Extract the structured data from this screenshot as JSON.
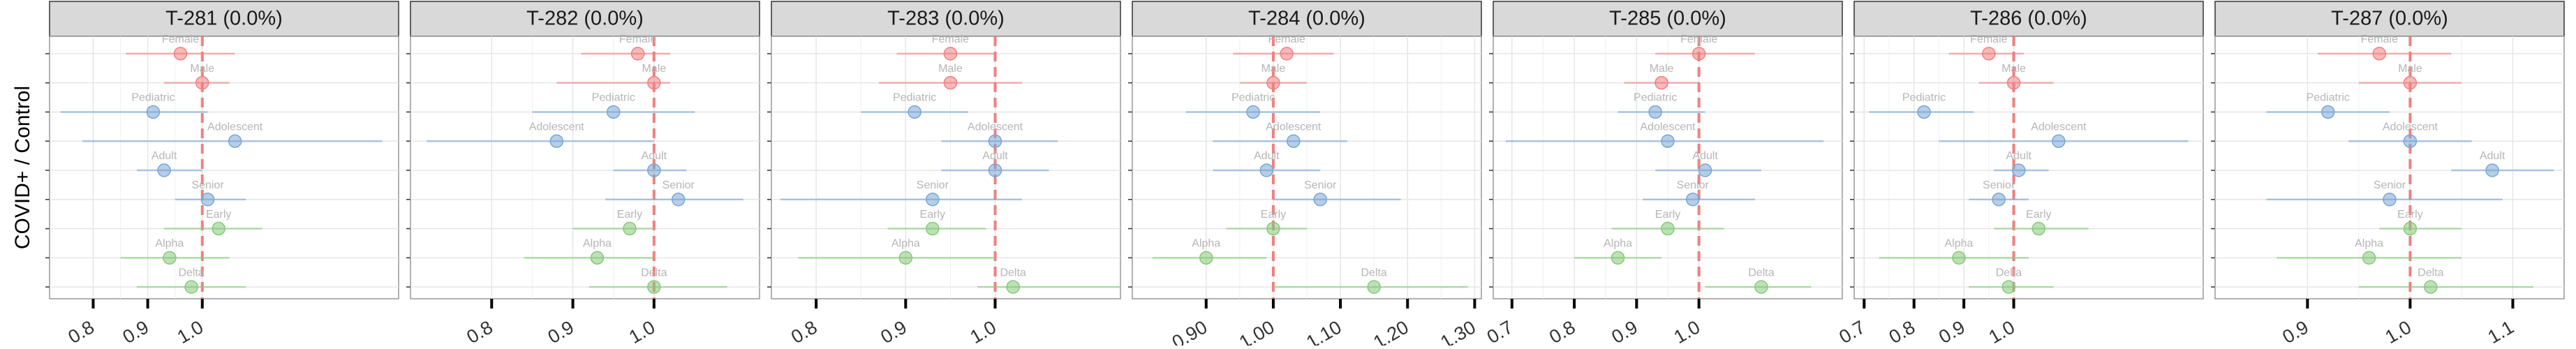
{
  "chart_data": [
    {
      "type": "forest",
      "title": "T-281 (0.0%)",
      "ylabel": "COVID+ / Control",
      "reference": 1,
      "categories": [
        "Female",
        "Male",
        "Pediatric",
        "Adolescent",
        "Adult",
        "Senior",
        "Early",
        "Alpha",
        "Delta"
      ],
      "colors": [
        "#f08080",
        "#f08080",
        "#7aa6d6",
        "#7aa6d6",
        "#7aa6d6",
        "#7aa6d6",
        "#86c97a",
        "#86c97a",
        "#86c97a"
      ],
      "values": [
        0.96,
        1.0,
        0.91,
        1.06,
        0.93,
        1.01,
        1.03,
        0.94,
        0.98
      ],
      "lower": [
        0.86,
        0.93,
        0.74,
        0.78,
        0.88,
        0.95,
        0.93,
        0.85,
        0.88
      ],
      "upper": [
        1.06,
        1.05,
        1.01,
        1.33,
        1.0,
        1.08,
        1.11,
        1.05,
        1.08
      ],
      "xlim": [
        0.72,
        1.36
      ],
      "xticks": [
        0.8,
        0.9,
        {
          "value": 1,
          "label": "1.0"
        }
      ]
    },
    {
      "type": "forest",
      "title": "T-282 (0.0%)",
      "reference": 1,
      "categories": [
        "Female",
        "Male",
        "Pediatric",
        "Adolescent",
        "Adult",
        "Senior",
        "Early",
        "Alpha",
        "Delta"
      ],
      "colors": [
        "#f08080",
        "#f08080",
        "#7aa6d6",
        "#7aa6d6",
        "#7aa6d6",
        "#7aa6d6",
        "#86c97a",
        "#86c97a",
        "#86c97a"
      ],
      "values": [
        0.98,
        1.0,
        0.95,
        0.88,
        1.0,
        1.03,
        0.97,
        0.93,
        1.0
      ],
      "lower": [
        0.91,
        0.88,
        0.85,
        0.72,
        0.95,
        0.94,
        0.9,
        0.84,
        0.92
      ],
      "upper": [
        1.02,
        1.02,
        1.05,
        1.0,
        1.04,
        1.11,
        1.0,
        1.0,
        1.09
      ],
      "xlim": [
        0.7,
        1.13
      ],
      "xticks": [
        0.8,
        0.9,
        {
          "value": 1,
          "label": "1.0"
        }
      ]
    },
    {
      "type": "forest",
      "title": "T-283 (0.0%)",
      "reference": 1,
      "categories": [
        "Female",
        "Male",
        "Pediatric",
        "Adolescent",
        "Adult",
        "Senior",
        "Early",
        "Alpha",
        "Delta"
      ],
      "colors": [
        "#f08080",
        "#f08080",
        "#7aa6d6",
        "#7aa6d6",
        "#7aa6d6",
        "#7aa6d6",
        "#86c97a",
        "#86c97a",
        "#86c97a"
      ],
      "values": [
        0.95,
        0.95,
        0.91,
        1.0,
        1.0,
        0.93,
        0.93,
        0.9,
        1.02
      ],
      "lower": [
        0.89,
        0.87,
        0.85,
        0.94,
        0.94,
        0.76,
        0.88,
        0.78,
        0.98
      ],
      "upper": [
        1.0,
        1.03,
        0.97,
        1.07,
        1.06,
        1.03,
        0.99,
        1.0,
        1.14
      ],
      "xlim": [
        0.75,
        1.14
      ],
      "xticks": [
        0.8,
        0.9,
        {
          "value": 1,
          "label": "1.0"
        }
      ]
    },
    {
      "type": "forest",
      "title": "T-284 (0.0%)",
      "reference": 1,
      "categories": [
        "Female",
        "Male",
        "Pediatric",
        "Adolescent",
        "Adult",
        "Senior",
        "Early",
        "Alpha",
        "Delta"
      ],
      "colors": [
        "#f08080",
        "#f08080",
        "#7aa6d6",
        "#7aa6d6",
        "#7aa6d6",
        "#7aa6d6",
        "#86c97a",
        "#86c97a",
        "#86c97a"
      ],
      "values": [
        1.02,
        1.0,
        0.97,
        1.03,
        0.99,
        1.07,
        1.0,
        0.9,
        1.15
      ],
      "lower": [
        0.94,
        0.95,
        0.87,
        0.91,
        0.91,
        1.0,
        0.93,
        0.82,
        1.0
      ],
      "upper": [
        1.09,
        1.05,
        1.07,
        1.11,
        1.07,
        1.19,
        1.05,
        0.99,
        1.29
      ],
      "xlim": [
        0.79,
        1.31
      ],
      "xticks": [
        {
          "value": 0.9,
          "label": "0.90"
        },
        {
          "value": 1,
          "label": "1.00"
        },
        {
          "value": 1.1,
          "label": "1.10"
        },
        {
          "value": 1.2,
          "label": "1.20"
        },
        {
          "value": 1.3,
          "label": "1.30"
        }
      ]
    },
    {
      "type": "forest",
      "title": "T-285 (0.0%)",
      "reference": 1,
      "categories": [
        "Female",
        "Male",
        "Pediatric",
        "Adolescent",
        "Adult",
        "Senior",
        "Early",
        "Alpha",
        "Delta"
      ],
      "colors": [
        "#f08080",
        "#f08080",
        "#7aa6d6",
        "#7aa6d6",
        "#7aa6d6",
        "#7aa6d6",
        "#86c97a",
        "#86c97a",
        "#86c97a"
      ],
      "values": [
        1.0,
        0.94,
        0.93,
        0.95,
        1.01,
        0.99,
        0.95,
        0.87,
        1.1
      ],
      "lower": [
        0.93,
        0.88,
        0.87,
        0.69,
        0.93,
        0.91,
        0.86,
        0.8,
        1.01
      ],
      "upper": [
        1.09,
        1.0,
        1.01,
        1.2,
        1.1,
        1.09,
        1.04,
        0.94,
        1.18
      ],
      "xlim": [
        0.67,
        1.23
      ],
      "xticks": [
        0.7,
        0.8,
        0.9,
        {
          "value": 1,
          "label": "1.0"
        }
      ]
    },
    {
      "type": "forest",
      "title": "T-286 (0.0%)",
      "reference": 1,
      "categories": [
        "Female",
        "Male",
        "Pediatric",
        "Adolescent",
        "Adult",
        "Senior",
        "Early",
        "Alpha",
        "Delta"
      ],
      "colors": [
        "#f08080",
        "#f08080",
        "#7aa6d6",
        "#7aa6d6",
        "#7aa6d6",
        "#7aa6d6",
        "#86c97a",
        "#86c97a",
        "#86c97a"
      ],
      "values": [
        0.95,
        1.0,
        0.82,
        1.09,
        1.01,
        0.97,
        1.05,
        0.89,
        0.99
      ],
      "lower": [
        0.87,
        0.93,
        0.71,
        0.85,
        0.96,
        0.91,
        0.96,
        0.73,
        0.91
      ],
      "upper": [
        1.02,
        1.08,
        0.92,
        1.35,
        1.07,
        1.03,
        1.15,
        1.03,
        1.08
      ],
      "xlim": [
        0.68,
        1.38
      ],
      "xticks": [
        0.7,
        0.8,
        0.9,
        {
          "value": 1,
          "label": "1.0"
        }
      ]
    },
    {
      "type": "forest",
      "title": "T-287 (0.0%)",
      "reference": 1,
      "categories": [
        "Female",
        "Male",
        "Pediatric",
        "Adolescent",
        "Adult",
        "Senior",
        "Early",
        "Alpha",
        "Delta"
      ],
      "colors": [
        "#f08080",
        "#f08080",
        "#7aa6d6",
        "#7aa6d6",
        "#7aa6d6",
        "#7aa6d6",
        "#86c97a",
        "#86c97a",
        "#86c97a"
      ],
      "values": [
        0.97,
        1.0,
        0.92,
        1.0,
        1.08,
        0.98,
        1.0,
        0.96,
        1.02
      ],
      "lower": [
        0.91,
        0.95,
        0.86,
        0.94,
        1.04,
        0.86,
        0.97,
        0.87,
        0.95
      ],
      "upper": [
        1.04,
        1.05,
        0.98,
        1.06,
        1.14,
        1.09,
        1.05,
        1.05,
        1.12
      ],
      "xlim": [
        0.81,
        1.15
      ],
      "xticks": [
        0.9,
        {
          "value": 1,
          "label": "1.0"
        },
        1.1
      ]
    }
  ]
}
